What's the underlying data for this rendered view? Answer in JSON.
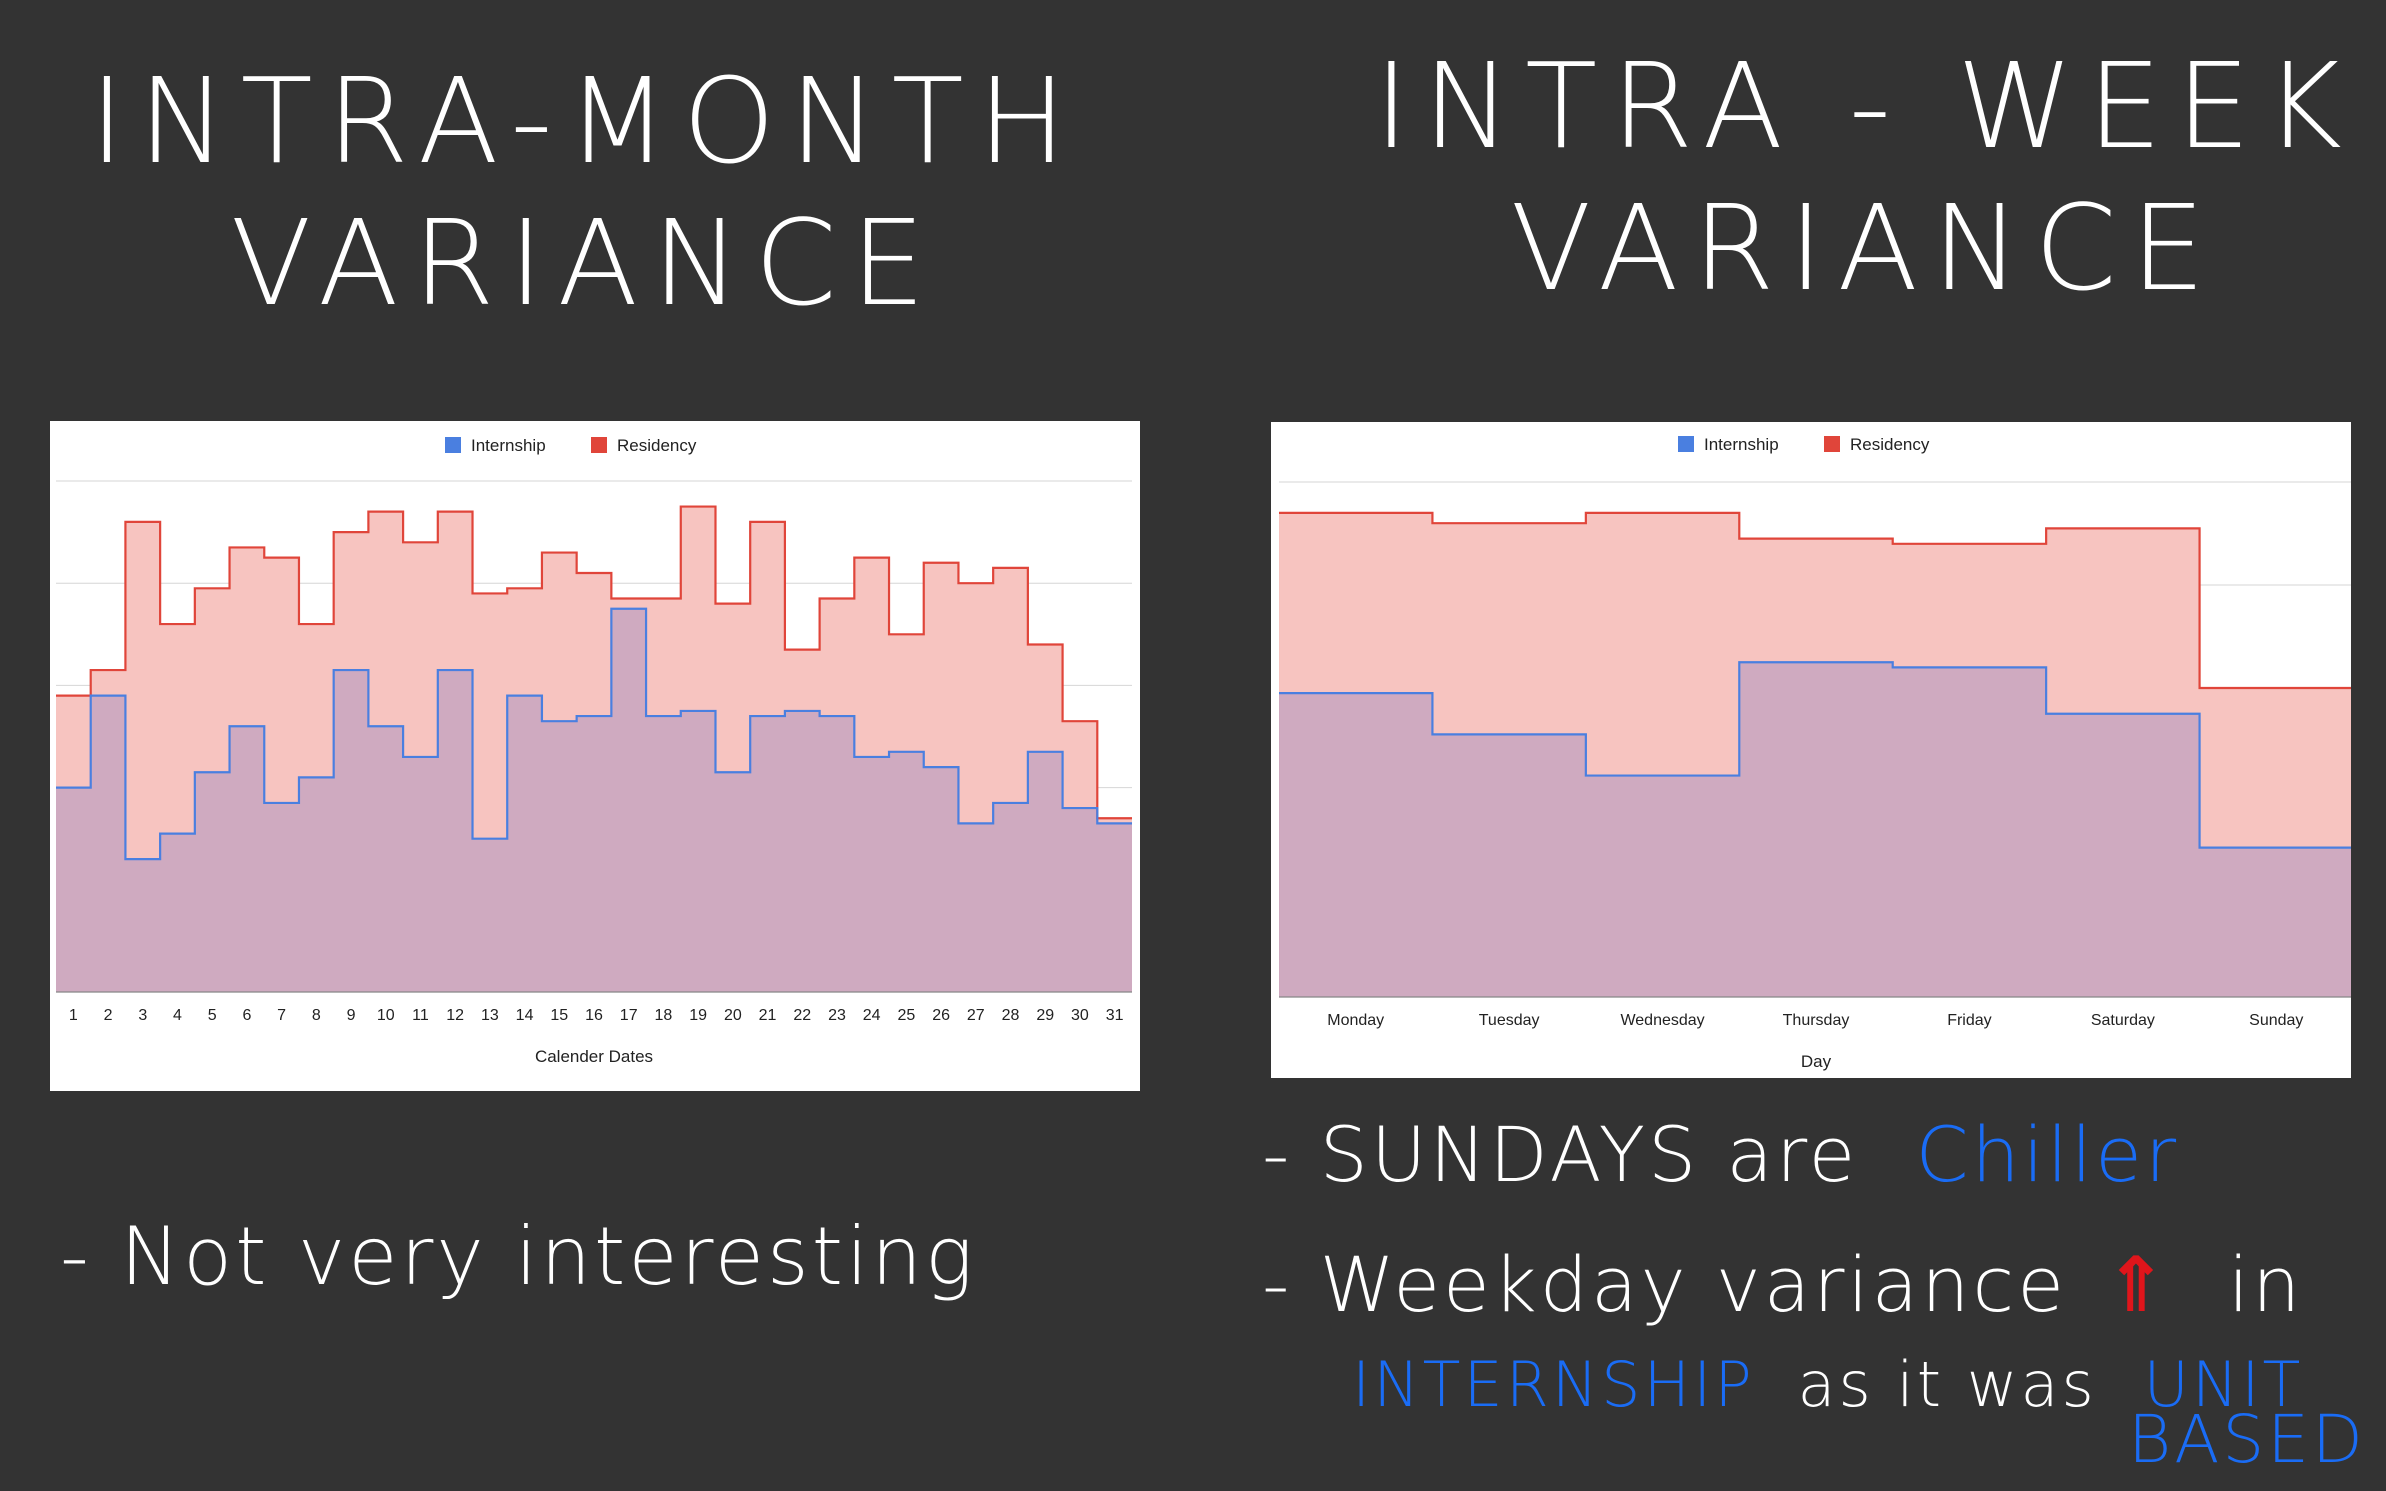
{
  "titles": {
    "left": [
      "INTRA-MONTH",
      "VARIANCE"
    ],
    "right": [
      "INTRA - WEEK",
      "VARIANCE"
    ]
  },
  "notes": {
    "left": "- Not very interesting",
    "right_line1_a": "- SUNDAYS are",
    "right_line1_b": "Chiller",
    "right_line2_a": "- Weekday variance",
    "right_line2_arrow": "⇑",
    "right_line2_b": "in",
    "right_line3_a": "INTERNSHIP",
    "right_line3_b": "as it was",
    "right_line3_c": "UNIT",
    "right_line4": "BASED"
  },
  "colors": {
    "background": "#333333",
    "internship": "#4a7fe0",
    "residency": "#e0453a",
    "residency_fill": "#f7c4c0",
    "overlap_fill": "#cfaac0",
    "grid": "#d6d6d6",
    "highlight_blue": "#1a6cf5",
    "highlight_red": "#e0151b"
  },
  "chart_data": [
    {
      "type": "area",
      "step": true,
      "legend": [
        "Internship",
        "Residency"
      ],
      "legend_position": "top",
      "xlabel": "Calender Dates",
      "ylabel": "",
      "ylim": [
        0,
        100
      ],
      "grid": true,
      "categories": [
        "1",
        "2",
        "3",
        "4",
        "5",
        "6",
        "7",
        "8",
        "9",
        "10",
        "11",
        "12",
        "13",
        "14",
        "15",
        "16",
        "17",
        "18",
        "19",
        "20",
        "21",
        "22",
        "23",
        "24",
        "25",
        "26",
        "27",
        "28",
        "29",
        "30",
        "31"
      ],
      "series": [
        {
          "name": "Internship",
          "values": [
            40,
            58,
            26,
            31,
            43,
            52,
            37,
            42,
            63,
            52,
            46,
            63,
            30,
            58,
            53,
            54,
            75,
            54,
            55,
            43,
            54,
            55,
            54,
            46,
            47,
            44,
            33,
            37,
            47,
            36,
            33
          ]
        },
        {
          "name": "Residency",
          "values": [
            58,
            63,
            92,
            72,
            79,
            87,
            85,
            72,
            90,
            94,
            88,
            94,
            78,
            79,
            86,
            82,
            77,
            77,
            95,
            76,
            92,
            67,
            77,
            85,
            70,
            84,
            80,
            83,
            68,
            53,
            34
          ]
        }
      ]
    },
    {
      "type": "area",
      "step": true,
      "legend": [
        "Internship",
        "Residency"
      ],
      "legend_position": "top",
      "xlabel": "Day",
      "ylabel": "",
      "ylim": [
        0,
        100
      ],
      "grid": true,
      "categories": [
        "Monday",
        "Tuesday",
        "Wednesday",
        "Thursday",
        "Friday",
        "Saturday",
        "Sunday"
      ],
      "series": [
        {
          "name": "Internship",
          "values": [
            59,
            51,
            43,
            65,
            64,
            55,
            29
          ]
        },
        {
          "name": "Residency",
          "values": [
            94,
            92,
            94,
            89,
            88,
            91,
            60
          ]
        }
      ]
    }
  ]
}
